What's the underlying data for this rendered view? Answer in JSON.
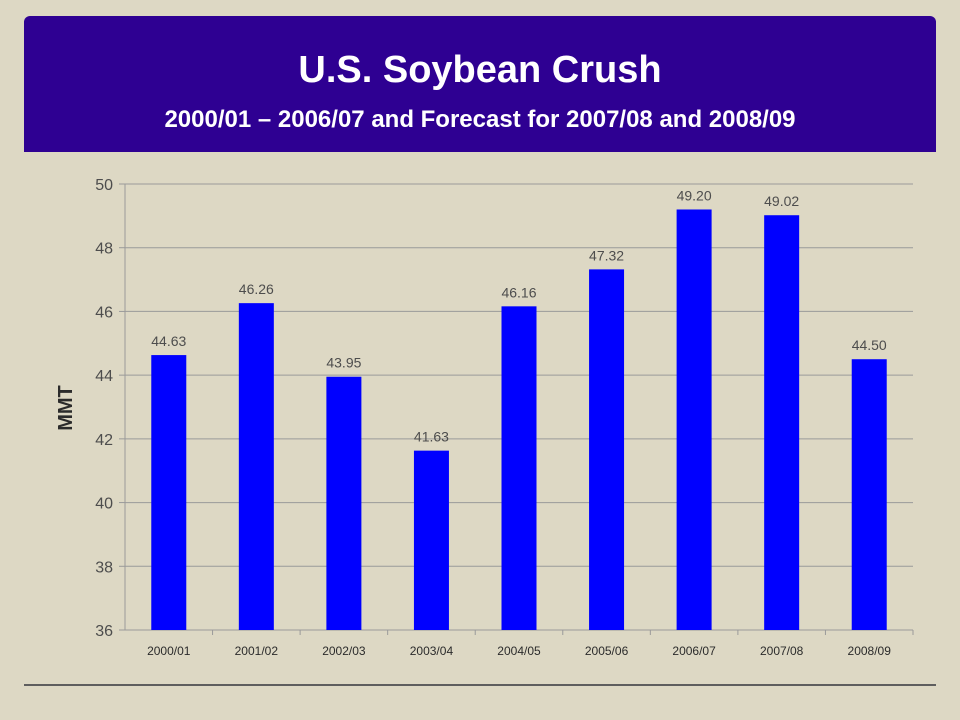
{
  "header": {
    "title": "U.S. Soybean Crush",
    "subtitle": "2000/01 – 2006/07 and Forecast for 2007/08 and 2008/09"
  },
  "colors": {
    "header_background": "#2e0092",
    "slide_background": "#ddd8c4",
    "bar": "#0000ff",
    "gridline": "#9a9a9a",
    "label": "#4d4d4d"
  },
  "chart_data": {
    "type": "bar",
    "title": "",
    "xlabel": "",
    "ylabel": "MMT",
    "categories": [
      "2000/01",
      "2001/02",
      "2002/03",
      "2003/04",
      "2004/05",
      "2005/06",
      "2006/07",
      "2007/08",
      "2008/09"
    ],
    "values": [
      44.63,
      46.26,
      43.95,
      41.63,
      46.16,
      47.32,
      49.2,
      49.02,
      44.5
    ],
    "data_labels": [
      "44.63",
      "46.26",
      "43.95",
      "41.63",
      "46.16",
      "47.32",
      "49.20",
      "49.02",
      "44.50"
    ],
    "ylim": [
      36,
      50
    ],
    "yticks": [
      36,
      38,
      40,
      42,
      44,
      46,
      48,
      50
    ],
    "ytick_labels": [
      "36",
      "38",
      "40",
      "42",
      "44",
      "46",
      "48",
      "50"
    ],
    "grid": true,
    "legend": "none"
  }
}
